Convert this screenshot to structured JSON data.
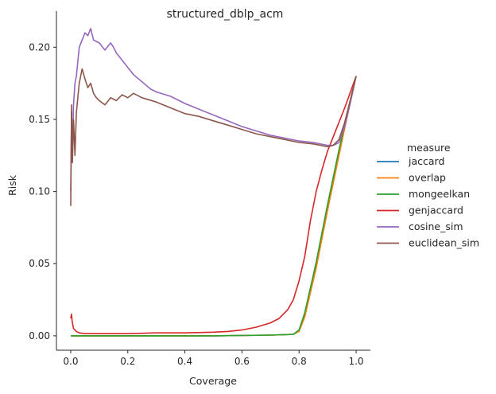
{
  "chart_data": {
    "type": "line",
    "title": "structured_dblp_acm",
    "xlabel": "Coverage",
    "ylabel": "Risk",
    "xlim": [
      -0.05,
      1.05
    ],
    "ylim": [
      -0.01,
      0.225
    ],
    "xticks": [
      0.0,
      0.2,
      0.4,
      0.6,
      0.8,
      1.0
    ],
    "xtick_labels": [
      "0.0",
      "0.2",
      "0.4",
      "0.6",
      "0.8",
      "1.0"
    ],
    "yticks": [
      0.0,
      0.05,
      0.1,
      0.15,
      0.2
    ],
    "ytick_labels": [
      "0.00",
      "0.05",
      "0.10",
      "0.15",
      "0.20"
    ],
    "grid": false,
    "legend_position": "right",
    "legend_title": "measure",
    "series": [
      {
        "name": "jaccard",
        "color": "#1f77b4",
        "points": [
          [
            0.0,
            0.0
          ],
          [
            0.1,
            0.0
          ],
          [
            0.3,
            0.0
          ],
          [
            0.5,
            0.0
          ],
          [
            0.7,
            0.0005
          ],
          [
            0.78,
            0.001
          ],
          [
            0.8,
            0.004
          ],
          [
            0.82,
            0.015
          ],
          [
            0.86,
            0.05
          ],
          [
            0.9,
            0.09
          ],
          [
            0.94,
            0.128
          ],
          [
            0.96,
            0.145
          ],
          [
            1.0,
            0.18
          ]
        ]
      },
      {
        "name": "overlap",
        "color": "#ff7f0e",
        "points": [
          [
            0.0,
            0.0
          ],
          [
            0.1,
            0.0
          ],
          [
            0.3,
            0.0
          ],
          [
            0.5,
            0.0
          ],
          [
            0.7,
            0.0005
          ],
          [
            0.78,
            0.001
          ],
          [
            0.8,
            0.003
          ],
          [
            0.82,
            0.013
          ],
          [
            0.86,
            0.047
          ],
          [
            0.9,
            0.087
          ],
          [
            0.94,
            0.125
          ],
          [
            0.96,
            0.144
          ],
          [
            1.0,
            0.18
          ]
        ]
      },
      {
        "name": "mongeelkan",
        "color": "#2ca02c",
        "points": [
          [
            0.0,
            0.0
          ],
          [
            0.1,
            0.0
          ],
          [
            0.3,
            0.0
          ],
          [
            0.5,
            0.0
          ],
          [
            0.7,
            0.0005
          ],
          [
            0.78,
            0.001
          ],
          [
            0.8,
            0.004
          ],
          [
            0.82,
            0.016
          ],
          [
            0.86,
            0.051
          ],
          [
            0.9,
            0.091
          ],
          [
            0.94,
            0.129
          ],
          [
            0.96,
            0.146
          ],
          [
            1.0,
            0.18
          ]
        ]
      },
      {
        "name": "genjaccard",
        "color": "#d62728",
        "points": [
          [
            0.0,
            0.012
          ],
          [
            0.003,
            0.015
          ],
          [
            0.005,
            0.01
          ],
          [
            0.01,
            0.005
          ],
          [
            0.02,
            0.003
          ],
          [
            0.03,
            0.002
          ],
          [
            0.05,
            0.0015
          ],
          [
            0.1,
            0.0015
          ],
          [
            0.2,
            0.0015
          ],
          [
            0.3,
            0.002
          ],
          [
            0.4,
            0.002
          ],
          [
            0.5,
            0.0025
          ],
          [
            0.55,
            0.003
          ],
          [
            0.6,
            0.004
          ],
          [
            0.65,
            0.006
          ],
          [
            0.7,
            0.009
          ],
          [
            0.73,
            0.012
          ],
          [
            0.76,
            0.018
          ],
          [
            0.78,
            0.025
          ],
          [
            0.8,
            0.038
          ],
          [
            0.82,
            0.055
          ],
          [
            0.84,
            0.08
          ],
          [
            0.86,
            0.1
          ],
          [
            0.88,
            0.115
          ],
          [
            0.9,
            0.128
          ],
          [
            0.92,
            0.138
          ],
          [
            0.94,
            0.148
          ],
          [
            0.96,
            0.158
          ],
          [
            1.0,
            0.18
          ]
        ]
      },
      {
        "name": "cosine_sim",
        "color": "#9467bd",
        "points": [
          [
            0.0,
            0.1
          ],
          [
            0.003,
            0.155
          ],
          [
            0.006,
            0.13
          ],
          [
            0.01,
            0.16
          ],
          [
            0.015,
            0.175
          ],
          [
            0.02,
            0.18
          ],
          [
            0.025,
            0.19
          ],
          [
            0.03,
            0.2
          ],
          [
            0.04,
            0.205
          ],
          [
            0.05,
            0.21
          ],
          [
            0.06,
            0.208
          ],
          [
            0.07,
            0.213
          ],
          [
            0.08,
            0.205
          ],
          [
            0.1,
            0.203
          ],
          [
            0.12,
            0.198
          ],
          [
            0.14,
            0.203
          ],
          [
            0.15,
            0.2
          ],
          [
            0.16,
            0.196
          ],
          [
            0.18,
            0.191
          ],
          [
            0.2,
            0.186
          ],
          [
            0.22,
            0.181
          ],
          [
            0.25,
            0.176
          ],
          [
            0.28,
            0.171
          ],
          [
            0.3,
            0.169
          ],
          [
            0.35,
            0.166
          ],
          [
            0.4,
            0.161
          ],
          [
            0.45,
            0.157
          ],
          [
            0.5,
            0.153
          ],
          [
            0.55,
            0.149
          ],
          [
            0.6,
            0.145
          ],
          [
            0.65,
            0.142
          ],
          [
            0.7,
            0.139
          ],
          [
            0.75,
            0.137
          ],
          [
            0.8,
            0.135
          ],
          [
            0.85,
            0.134
          ],
          [
            0.9,
            0.132
          ],
          [
            0.92,
            0.132
          ],
          [
            0.94,
            0.134
          ],
          [
            0.96,
            0.145
          ],
          [
            0.98,
            0.162
          ],
          [
            1.0,
            0.18
          ]
        ]
      },
      {
        "name": "euclidean_sim",
        "color": "#8c564b",
        "points": [
          [
            0.0,
            0.09
          ],
          [
            0.003,
            0.16
          ],
          [
            0.006,
            0.12
          ],
          [
            0.01,
            0.15
          ],
          [
            0.015,
            0.125
          ],
          [
            0.02,
            0.155
          ],
          [
            0.03,
            0.175
          ],
          [
            0.04,
            0.185
          ],
          [
            0.05,
            0.178
          ],
          [
            0.06,
            0.172
          ],
          [
            0.07,
            0.175
          ],
          [
            0.08,
            0.168
          ],
          [
            0.09,
            0.165
          ],
          [
            0.1,
            0.163
          ],
          [
            0.12,
            0.16
          ],
          [
            0.14,
            0.165
          ],
          [
            0.16,
            0.163
          ],
          [
            0.18,
            0.167
          ],
          [
            0.2,
            0.165
          ],
          [
            0.22,
            0.168
          ],
          [
            0.25,
            0.165
          ],
          [
            0.3,
            0.162
          ],
          [
            0.35,
            0.158
          ],
          [
            0.4,
            0.154
          ],
          [
            0.45,
            0.152
          ],
          [
            0.5,
            0.149
          ],
          [
            0.55,
            0.146
          ],
          [
            0.6,
            0.143
          ],
          [
            0.65,
            0.14
          ],
          [
            0.7,
            0.138
          ],
          [
            0.75,
            0.136
          ],
          [
            0.8,
            0.134
          ],
          [
            0.85,
            0.133
          ],
          [
            0.9,
            0.131
          ],
          [
            0.92,
            0.132
          ],
          [
            0.94,
            0.136
          ],
          [
            0.96,
            0.148
          ],
          [
            0.98,
            0.164
          ],
          [
            1.0,
            0.18
          ]
        ]
      }
    ]
  }
}
